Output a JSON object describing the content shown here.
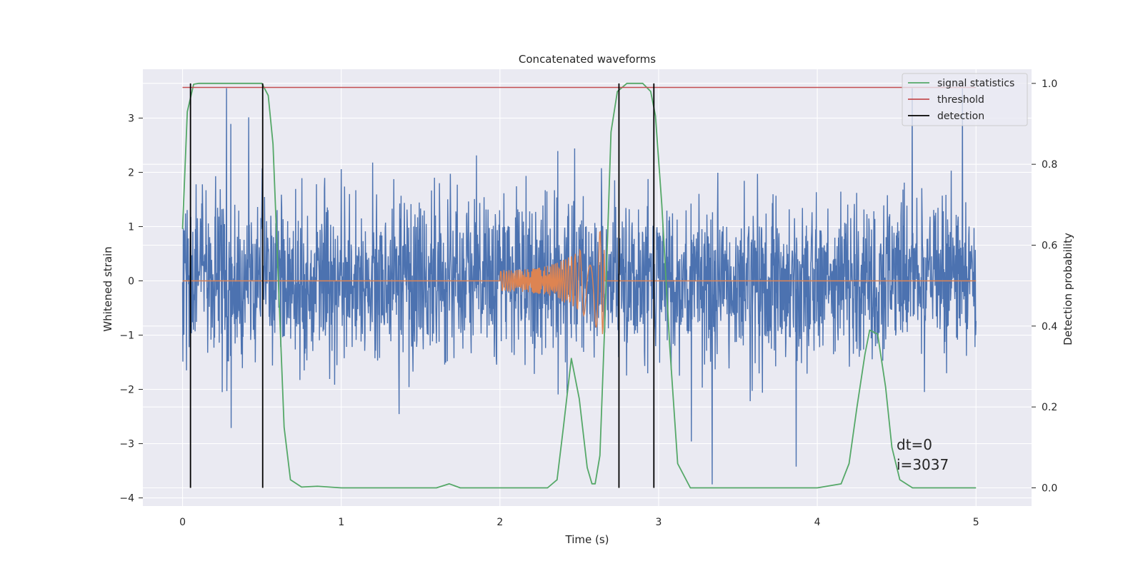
{
  "chart_data": {
    "type": "line",
    "title": "Concatenated waveforms",
    "xlabel": "Time (s)",
    "ylabel": "Whitened strain",
    "y2label": "Detection probability",
    "xlim": [
      -0.25,
      5.35
    ],
    "ylim": [
      -4.15,
      3.9
    ],
    "y2lim": [
      -0.045,
      1.035
    ],
    "xticks": [
      0,
      1,
      2,
      3,
      4,
      5
    ],
    "yticks": [
      -4,
      -3,
      -2,
      -1,
      0,
      1,
      2,
      3
    ],
    "y2ticks": [
      0.0,
      0.2,
      0.4,
      0.6,
      0.8,
      1.0
    ],
    "xtick_labels": [
      "0",
      "1",
      "2",
      "3",
      "4",
      "5"
    ],
    "ytick_labels": [
      "−4",
      "−3",
      "−2",
      "−1",
      "0",
      "1",
      "2",
      "3"
    ],
    "y2tick_labels": [
      "0.0",
      "0.2",
      "0.4",
      "0.6",
      "0.8",
      "1.0"
    ],
    "grid": true,
    "legend_position": "top-right",
    "annotation_lines": [
      "dt=0",
      "i=3037"
    ],
    "series": [
      {
        "name": "",
        "axis": "left",
        "color": "#4c72b0",
        "description": "whitened strain noise, roughly gaussian amplitude about 0.7, spikes to about ±3.5",
        "x_range": [
          0,
          5.0
        ]
      },
      {
        "name": "",
        "axis": "left",
        "color": "#dd8452",
        "description": "injected chirp waveform, zero outside 2.0–2.66 s, amplitude growing from 0.2 to 1.05",
        "x_range": [
          0,
          5.0
        ],
        "chirp_start": 2.0,
        "chirp_end": 2.66,
        "chirp_amp_start": 0.2,
        "chirp_amp_end": 1.05
      },
      {
        "name": "signal statistics",
        "axis": "right",
        "color": "#55a868",
        "x": [
          0,
          0.03,
          0.07,
          0.1,
          0.2,
          0.3,
          0.4,
          0.5,
          0.54,
          0.57,
          0.6,
          0.64,
          0.68,
          0.75,
          0.85,
          1.0,
          1.2,
          1.4,
          1.6,
          1.68,
          1.75,
          1.9,
          2.1,
          2.3,
          2.36,
          2.4,
          2.45,
          2.5,
          2.55,
          2.58,
          2.6,
          2.63,
          2.66,
          2.7,
          2.74,
          2.8,
          2.9,
          2.95,
          2.98,
          3.02,
          3.07,
          3.12,
          3.2,
          3.4,
          3.7,
          4.0,
          4.15,
          4.2,
          4.25,
          4.3,
          4.33,
          4.38,
          4.43,
          4.47,
          4.52,
          4.6,
          5.0
        ],
        "y": [
          0.64,
          0.93,
          0.998,
          1.0,
          1.0,
          1.0,
          1.0,
          1.0,
          0.97,
          0.85,
          0.55,
          0.15,
          0.02,
          0.002,
          0.004,
          0.0,
          0.0,
          0.0,
          0.0,
          0.01,
          0.0,
          0.0,
          0.0,
          0.0,
          0.02,
          0.15,
          0.32,
          0.22,
          0.05,
          0.01,
          0.01,
          0.08,
          0.4,
          0.88,
          0.98,
          1.0,
          1.0,
          0.98,
          0.92,
          0.7,
          0.35,
          0.06,
          0.0,
          0.0,
          0.0,
          0.0,
          0.01,
          0.06,
          0.2,
          0.33,
          0.39,
          0.38,
          0.25,
          0.1,
          0.02,
          0.0,
          0.0
        ]
      },
      {
        "name": "threshold",
        "axis": "right",
        "color": "#c44e52",
        "x": [
          0,
          5.0
        ],
        "y": [
          0.99,
          0.99
        ]
      },
      {
        "name": "detection",
        "axis": "right",
        "color": "#000000",
        "type": "vlines",
        "x": [
          0.05,
          0.505,
          2.75,
          2.97
        ],
        "y_range": [
          0.0,
          1.0
        ]
      }
    ]
  }
}
